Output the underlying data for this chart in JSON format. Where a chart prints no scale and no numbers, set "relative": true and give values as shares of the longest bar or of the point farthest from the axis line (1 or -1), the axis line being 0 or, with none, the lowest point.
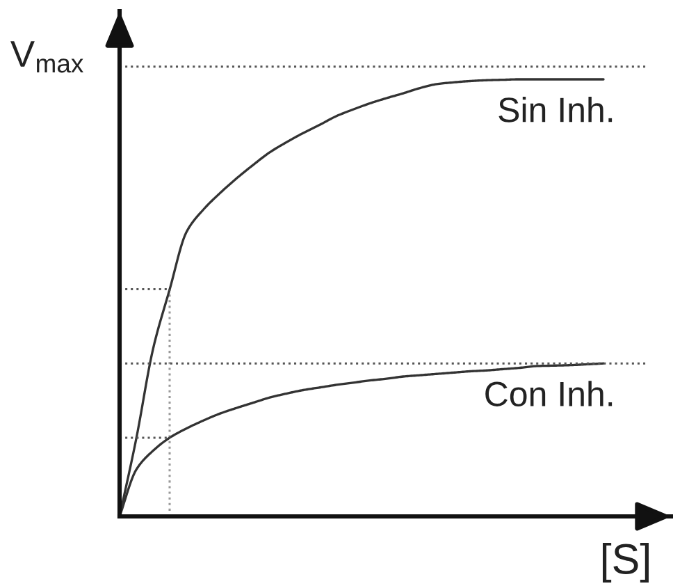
{
  "chart_data": {
    "type": "line",
    "relative": true,
    "xlabel": "[S]",
    "categories": [
      null,
      null,
      null,
      null,
      null,
      null,
      null,
      null,
      null,
      null,
      null,
      null,
      null,
      null,
      null,
      null,
      null,
      null,
      null,
      null,
      null,
      null,
      null,
      null,
      null,
      null,
      null,
      null,
      null,
      null
    ],
    "series": [
      {
        "name": "Sin Inh.",
        "color": "#333333",
        "values": [
          0,
          0.178,
          0.382,
          0.519,
          0.65,
          0.701,
          0.739,
          0.773,
          0.804,
          0.833,
          0.856,
          0.877,
          0.896,
          0.916,
          0.931,
          0.945,
          0.957,
          0.968,
          0.98,
          0.989,
          0.993,
          0.996,
          0.998,
          0.999,
          1,
          1,
          1,
          1,
          1,
          1
        ]
      },
      {
        "name": "Con Inh.",
        "color": "#333333",
        "values": [
          0,
          0.107,
          0.15,
          0.18,
          0.201,
          0.219,
          0.235,
          0.248,
          0.26,
          0.272,
          0.281,
          0.289,
          0.295,
          0.301,
          0.306,
          0.311,
          0.315,
          0.32,
          0.323,
          0.326,
          0.329,
          0.332,
          0.334,
          0.337,
          0.34,
          0.344,
          0.345,
          0.346,
          0.348,
          0.35
        ]
      },
      {
        "color": "#555555",
        "line_style": "dotted",
        "values": [
          0.52,
          0.52,
          0.52,
          0.52,
          null,
          null,
          null,
          null,
          null,
          null,
          null,
          null,
          null,
          null,
          null,
          null,
          null,
          null,
          null,
          null,
          null,
          null,
          null,
          null,
          null,
          null,
          null,
          null,
          null,
          null
        ]
      },
      {
        "color": "#555555",
        "line_style": "dotted",
        "values": [
          0.18,
          0.18,
          0.18,
          0.18,
          null,
          null,
          null,
          null,
          null,
          null,
          null,
          null,
          null,
          null,
          null,
          null,
          null,
          null,
          null,
          null,
          null,
          null,
          null,
          null,
          null,
          null,
          null,
          null,
          null,
          null
        ]
      }
    ],
    "ref_lines": [
      {
        "axis": "y",
        "value": 1.029,
        "label": "V$_{max}$",
        "color": "#555555",
        "line_style": "dotted"
      },
      {
        "axis": "y",
        "value": 0.35,
        "color": "#555555",
        "line_style": "dotted"
      }
    ]
  }
}
